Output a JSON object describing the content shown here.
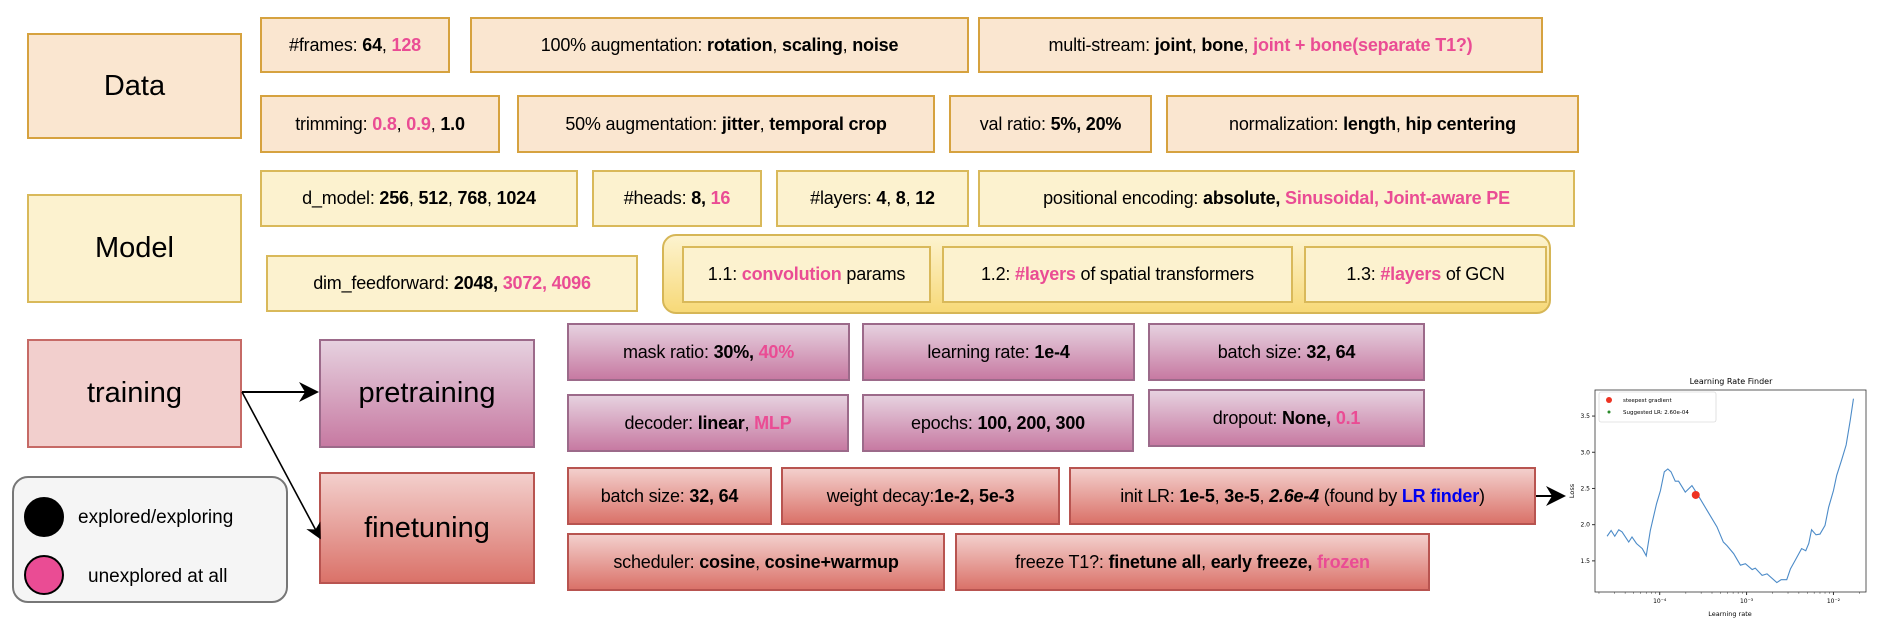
{
  "colors": {
    "explored": "#000000",
    "unexplored": "#ea4c94",
    "link": "#0000ee"
  },
  "sections": {
    "data": "Data",
    "model": "Model",
    "training": "training",
    "pretraining": "pretraining",
    "finetuning": "finetuning"
  },
  "legend": {
    "explored": "explored/exploring",
    "unexplored": "unexplored at all"
  },
  "data_params": [
    {
      "segments": [
        {
          "t": "#frames: ",
          "s": "n"
        },
        {
          "t": "64",
          "s": "b"
        },
        {
          "t": ", ",
          "s": "n"
        },
        {
          "t": "128",
          "s": "p"
        }
      ]
    },
    {
      "segments": [
        {
          "t": "100% augmentation: ",
          "s": "n"
        },
        {
          "t": "rotation",
          "s": "b"
        },
        {
          "t": ", ",
          "s": "n"
        },
        {
          "t": "scaling",
          "s": "b"
        },
        {
          "t": ", ",
          "s": "n"
        },
        {
          "t": "noise",
          "s": "b"
        }
      ]
    },
    {
      "segments": [
        {
          "t": "multi-stream: ",
          "s": "n"
        },
        {
          "t": "joint",
          "s": "b"
        },
        {
          "t": ", ",
          "s": "n"
        },
        {
          "t": "bone",
          "s": "b"
        },
        {
          "t": ", ",
          "s": "n"
        },
        {
          "t": "joint + bone(separate T1?)",
          "s": "p"
        }
      ]
    },
    {
      "segments": [
        {
          "t": "trimming: ",
          "s": "n"
        },
        {
          "t": "0.8",
          "s": "p"
        },
        {
          "t": ", ",
          "s": "n"
        },
        {
          "t": "0.9",
          "s": "p"
        },
        {
          "t": ", ",
          "s": "n"
        },
        {
          "t": "1.0",
          "s": "b"
        }
      ]
    },
    {
      "segments": [
        {
          "t": "50% augmentation: ",
          "s": "n"
        },
        {
          "t": "jitter",
          "s": "b"
        },
        {
          "t": ", ",
          "s": "n"
        },
        {
          "t": "temporal crop",
          "s": "b"
        }
      ]
    },
    {
      "segments": [
        {
          "t": "val ratio: ",
          "s": "n"
        },
        {
          "t": "5%, 20%",
          "s": "b"
        }
      ]
    },
    {
      "segments": [
        {
          "t": "normalization: ",
          "s": "n"
        },
        {
          "t": "length",
          "s": "b"
        },
        {
          "t": ", ",
          "s": "n"
        },
        {
          "t": "hip centering",
          "s": "b"
        }
      ]
    }
  ],
  "model_params": [
    {
      "segments": [
        {
          "t": "d_model: ",
          "s": "n"
        },
        {
          "t": "256",
          "s": "b"
        },
        {
          "t": ", ",
          "s": "n"
        },
        {
          "t": "512",
          "s": "b"
        },
        {
          "t": ", ",
          "s": "n"
        },
        {
          "t": "768",
          "s": "b"
        },
        {
          "t": ", ",
          "s": "n"
        },
        {
          "t": "1024",
          "s": "b"
        }
      ]
    },
    {
      "segments": [
        {
          "t": "#heads: ",
          "s": "n"
        },
        {
          "t": "8, ",
          "s": "b"
        },
        {
          "t": "16",
          "s": "p"
        }
      ]
    },
    {
      "segments": [
        {
          "t": "#layers: ",
          "s": "n"
        },
        {
          "t": "4",
          "s": "b"
        },
        {
          "t": ", ",
          "s": "n"
        },
        {
          "t": "8",
          "s": "b"
        },
        {
          "t": ", ",
          "s": "n"
        },
        {
          "t": "12",
          "s": "b"
        }
      ]
    },
    {
      "segments": [
        {
          "t": "positional encoding: ",
          "s": "n"
        },
        {
          "t": "absolute, ",
          "s": "b"
        },
        {
          "t": "Sinusoidal, Joint-aware PE",
          "s": "p"
        }
      ]
    },
    {
      "segments": [
        {
          "t": "dim_feedforward: ",
          "s": "n"
        },
        {
          "t": "2048, ",
          "s": "b"
        },
        {
          "t": "3072, 4096",
          "s": "p"
        }
      ]
    },
    {
      "segments": [
        {
          "t": "1.1: ",
          "s": "n"
        },
        {
          "t": "convolution",
          "s": "p"
        },
        {
          "t": " params",
          "s": "n"
        }
      ]
    },
    {
      "segments": [
        {
          "t": "1.2: ",
          "s": "n"
        },
        {
          "t": "#layers",
          "s": "p"
        },
        {
          "t": " of spatial transformers",
          "s": "n"
        }
      ]
    },
    {
      "segments": [
        {
          "t": "1.3: ",
          "s": "n"
        },
        {
          "t": "#layers",
          "s": "p"
        },
        {
          "t": " of GCN",
          "s": "n"
        }
      ]
    }
  ],
  "pretraining_params": [
    {
      "segments": [
        {
          "t": "mask ratio: ",
          "s": "n"
        },
        {
          "t": "30%, ",
          "s": "b"
        },
        {
          "t": "40%",
          "s": "p"
        }
      ]
    },
    {
      "segments": [
        {
          "t": "learning rate: ",
          "s": "n"
        },
        {
          "t": "1e-4",
          "s": "b"
        }
      ]
    },
    {
      "segments": [
        {
          "t": "batch size: ",
          "s": "n"
        },
        {
          "t": "32, 64",
          "s": "b"
        }
      ]
    },
    {
      "segments": [
        {
          "t": "decoder: ",
          "s": "n"
        },
        {
          "t": "linear",
          "s": "b"
        },
        {
          "t": ", ",
          "s": "n"
        },
        {
          "t": "MLP",
          "s": "p"
        }
      ]
    },
    {
      "segments": [
        {
          "t": "epochs: ",
          "s": "n"
        },
        {
          "t": "100, 200, 300",
          "s": "b"
        }
      ]
    },
    {
      "segments": [
        {
          "t": "dropout: ",
          "s": "n"
        },
        {
          "t": "None, ",
          "s": "b"
        },
        {
          "t": "0.1",
          "s": "p"
        }
      ]
    }
  ],
  "finetuning_params": [
    {
      "segments": [
        {
          "t": "batch size: ",
          "s": "n"
        },
        {
          "t": "32, 64",
          "s": "b"
        }
      ]
    },
    {
      "segments": [
        {
          "t": "weight decay:",
          "s": "n"
        },
        {
          "t": "1e-2, 5e-3",
          "s": "b"
        }
      ]
    },
    {
      "segments": [
        {
          "t": "init LR: ",
          "s": "n"
        },
        {
          "t": "1e-5",
          "s": "b"
        },
        {
          "t": ", ",
          "s": "n"
        },
        {
          "t": "3e-5",
          "s": "b"
        },
        {
          "t": ", ",
          "s": "n"
        },
        {
          "t": "2.6e-4",
          "s": "bi"
        },
        {
          "t": " (found by ",
          "s": "n"
        },
        {
          "t": "LR finder",
          "s": "bl"
        },
        {
          "t": ")",
          "s": "n"
        }
      ]
    },
    {
      "segments": [
        {
          "t": "scheduler: ",
          "s": "n"
        },
        {
          "t": "cosine",
          "s": "b"
        },
        {
          "t": ", ",
          "s": "n"
        },
        {
          "t": "cosine+warmup",
          "s": "b"
        }
      ]
    },
    {
      "segments": [
        {
          "t": "freeze T1?: ",
          "s": "n"
        },
        {
          "t": "finetune all",
          "s": "b"
        },
        {
          "t": ", ",
          "s": "n"
        },
        {
          "t": "early freeze, ",
          "s": "b"
        },
        {
          "t": "frozen",
          "s": "p"
        }
      ]
    }
  ],
  "chart_data": {
    "type": "line",
    "title": "Learning Rate Finder",
    "xlabel": "Learning rate",
    "ylabel": "Loss",
    "xscale": "log",
    "xlim": [
      1.8e-05,
      0.0237
    ],
    "ylim": [
      1.07,
      3.86
    ],
    "xticks": [
      {
        "v": 0.0001,
        "label": "10⁻⁴"
      },
      {
        "v": 0.001,
        "label": "10⁻³"
      },
      {
        "v": 0.01,
        "label": "10⁻²"
      }
    ],
    "yticks": [
      {
        "v": 1.5,
        "label": "1.5"
      },
      {
        "v": 2.0,
        "label": "2.0"
      },
      {
        "v": 2.5,
        "label": "2.5"
      },
      {
        "v": 3.0,
        "label": "3.0"
      },
      {
        "v": 3.5,
        "label": "3.5"
      }
    ],
    "grid": false,
    "legend_position": "top-left",
    "series": [
      {
        "color": "#4c8bc8",
        "x": [
          2.48e-05,
          2.76e-05,
          3.04e-05,
          3.38e-05,
          3.69e-05,
          4.4e-05,
          4.8e-05,
          5.4e-05,
          6.3e-05,
          7e-05,
          7.8e-05,
          9.2e-05,
          0.000102,
          0.000113,
          0.000124,
          0.000135,
          0.000151,
          0.000165,
          0.000197,
          0.000235,
          0.000269,
          0.00035,
          0.000456,
          0.00054,
          0.000595,
          0.00071,
          0.00085,
          0.00097,
          0.00116,
          0.00126,
          0.00151,
          0.00172,
          0.00223,
          0.0025,
          0.0029,
          0.0032,
          0.0036,
          0.0043,
          0.0048,
          0.0052,
          0.0056,
          0.0063,
          0.007,
          0.008,
          0.0088,
          0.01,
          0.0109,
          0.0124,
          0.014,
          0.0156,
          0.017
        ],
        "y": [
          1.84,
          1.92,
          1.84,
          1.93,
          1.9,
          1.76,
          1.83,
          1.74,
          1.67,
          1.57,
          1.92,
          2.29,
          2.47,
          2.73,
          2.77,
          2.73,
          2.6,
          2.6,
          2.45,
          2.54,
          2.43,
          2.2,
          1.97,
          1.76,
          1.71,
          1.6,
          1.44,
          1.46,
          1.38,
          1.4,
          1.3,
          1.32,
          1.2,
          1.24,
          1.24,
          1.39,
          1.5,
          1.67,
          1.64,
          1.74,
          1.93,
          1.86,
          1.87,
          1.99,
          2.24,
          2.47,
          2.68,
          2.89,
          3.1,
          3.44,
          3.74
        ]
      }
    ],
    "markers": [
      {
        "name": "steepest gradient",
        "x": 0.00026,
        "y": 2.41,
        "color": "#ee3322"
      },
      {
        "name": "Suggested LR: 2.60e-04",
        "color": "#2a8a2a"
      }
    ]
  }
}
